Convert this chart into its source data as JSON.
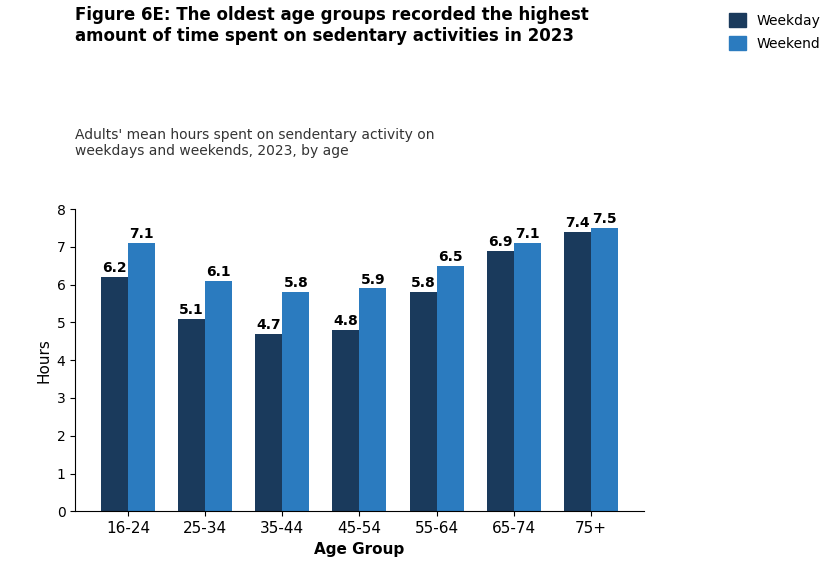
{
  "title_bold": "Figure 6E: The oldest age groups recorded the highest\namount of time spent on sedentary activities in 2023",
  "subtitle": "Adults' mean hours spent on sendentary activity on\nweekdays and weekends, 2023, by age",
  "xlabel": "Age Group",
  "ylabel": "Hours",
  "categories": [
    "16-24",
    "25-34",
    "35-44",
    "45-54",
    "55-64",
    "65-74",
    "75+"
  ],
  "weekday_values": [
    6.2,
    5.1,
    4.7,
    4.8,
    5.8,
    6.9,
    7.4
  ],
  "weekend_values": [
    7.1,
    6.1,
    5.8,
    5.9,
    6.5,
    7.1,
    7.5
  ],
  "weekday_color": "#1a3a5c",
  "weekend_color": "#2b7bbf",
  "ylim": [
    0,
    8
  ],
  "yticks": [
    0,
    1,
    2,
    3,
    4,
    5,
    6,
    7,
    8
  ],
  "bar_width": 0.35,
  "legend_labels": [
    "Weekday",
    "Weekend"
  ],
  "background_color": "#ffffff",
  "label_fontsize": 10,
  "title_fontsize": 12,
  "subtitle_fontsize": 10,
  "axis_label_fontsize": 11
}
